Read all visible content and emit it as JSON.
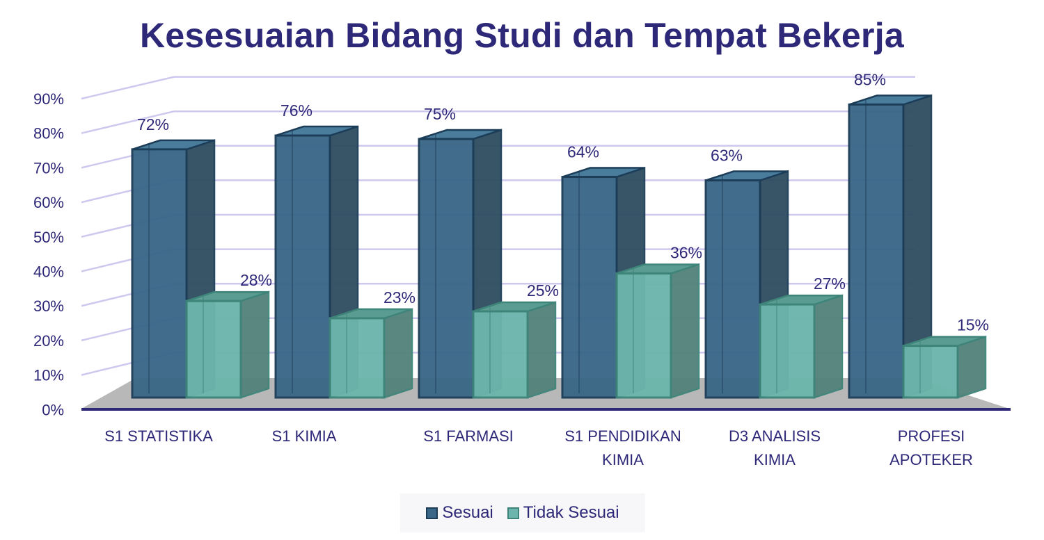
{
  "title": "Kesesuaian Bidang Studi dan Tempat Bekerja",
  "legend": {
    "items": [
      {
        "label": "Sesuai",
        "color": "#3a6787",
        "border": "#1c3d58"
      },
      {
        "label": "Tidak Sesuai",
        "color": "#6cb5ac",
        "border": "#3e8479"
      }
    ]
  },
  "y_axis": {
    "ticks": [
      "0%",
      "10%",
      "20%",
      "30%",
      "40%",
      "50%",
      "60%",
      "70%",
      "80%",
      "90%"
    ]
  },
  "categories": [
    {
      "line1": "S1 STATISTIKA",
      "line2": ""
    },
    {
      "line1": "S1 KIMIA",
      "line2": ""
    },
    {
      "line1": "S1 FARMASI",
      "line2": ""
    },
    {
      "line1": "S1 PENDIDIKAN",
      "line2": "KIMIA"
    },
    {
      "line1": "D3 ANALISIS",
      "line2": "KIMIA"
    },
    {
      "line1": "PROFESI",
      "line2": "APOTEKER"
    }
  ],
  "chart_data": {
    "type": "bar",
    "title": "Kesesuaian Bidang Studi dan Tempat Bekerja",
    "xlabel": "",
    "ylabel": "",
    "categories": [
      "S1 STATISTIKA",
      "S1 KIMIA",
      "S1 FARMASI",
      "S1 PENDIDIKAN KIMIA",
      "D3 ANALISIS KIMIA",
      "PROFESI APOTEKER"
    ],
    "series": [
      {
        "name": "Sesuai",
        "values": [
          72,
          76,
          75,
          64,
          63,
          85
        ],
        "labels": [
          "72%",
          "76%",
          "75%",
          "64%",
          "63%",
          "85%"
        ]
      },
      {
        "name": "Tidak Sesuai",
        "values": [
          28,
          23,
          25,
          36,
          27,
          15
        ],
        "labels": [
          "28%",
          "23%",
          "25%",
          "36%",
          "27%",
          "15%"
        ]
      }
    ],
    "ylim": [
      0,
      90
    ],
    "y_ticks": [
      "0%",
      "10%",
      "20%",
      "30%",
      "40%",
      "50%",
      "60%",
      "70%",
      "80%",
      "90%"
    ],
    "grid": true,
    "legend_position": "bottom",
    "style": "3d-clustered-column"
  }
}
